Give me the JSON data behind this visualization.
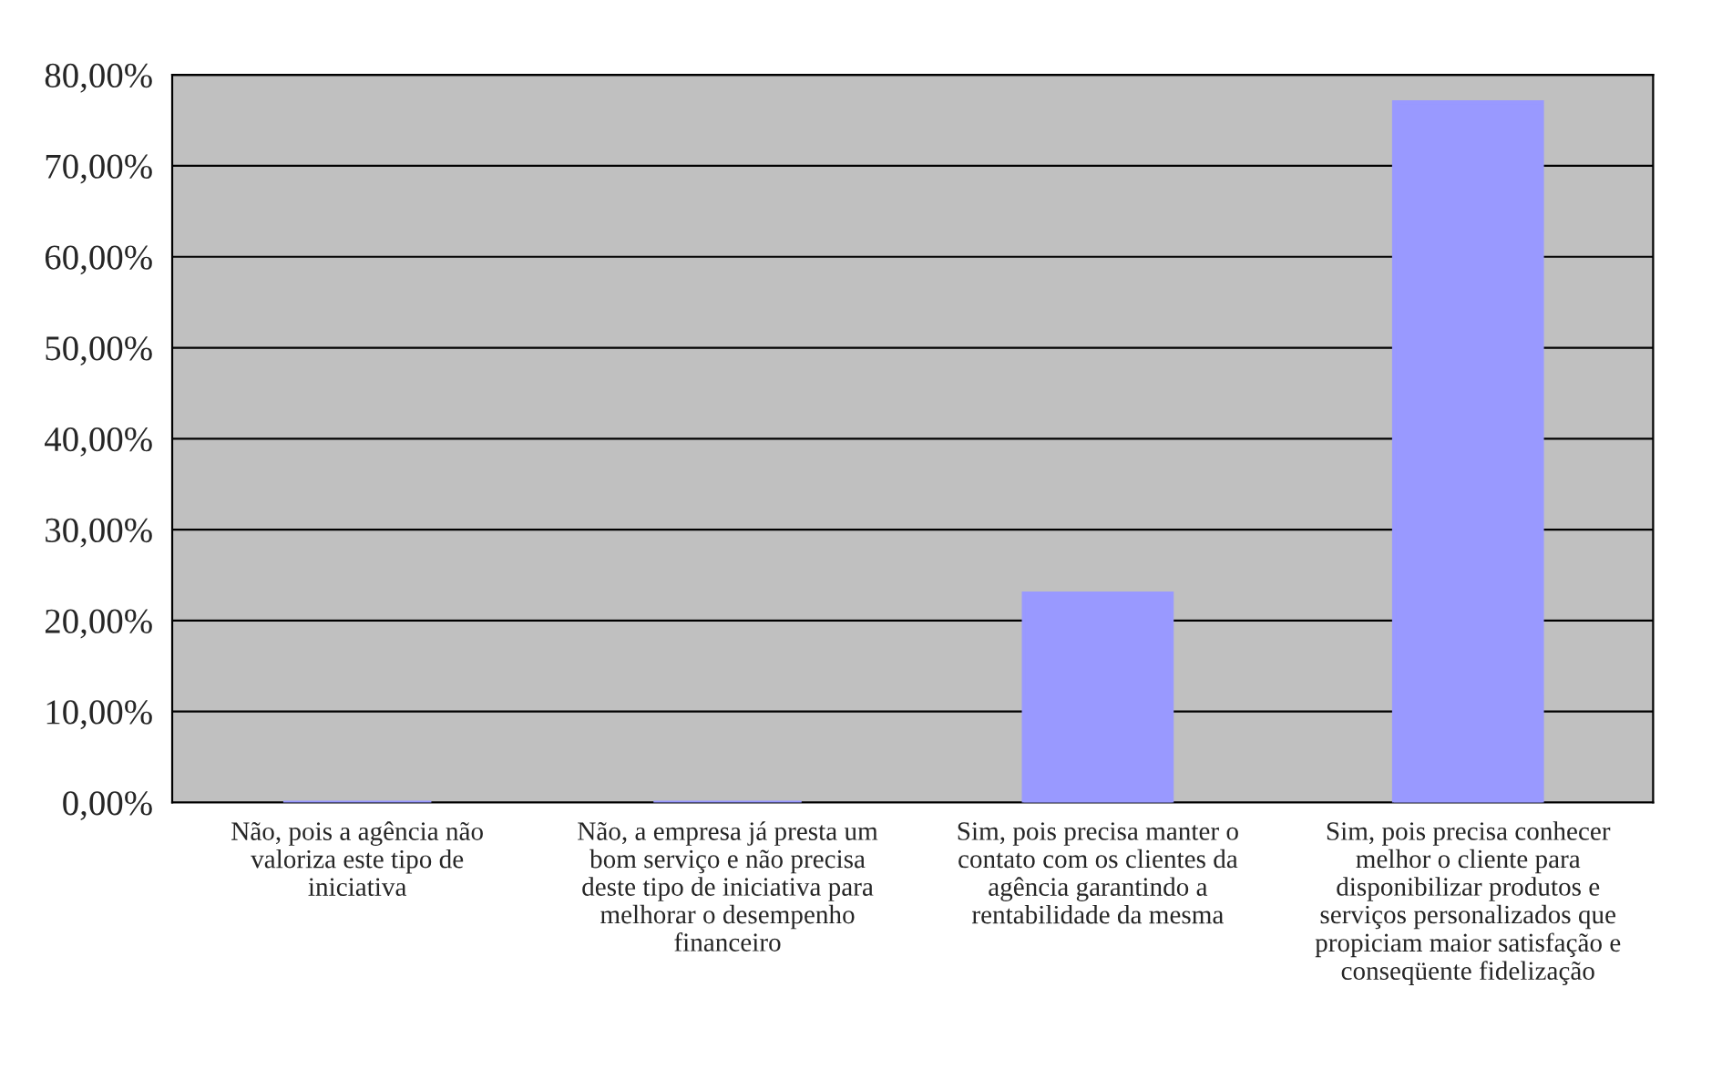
{
  "chart_data": {
    "type": "bar",
    "categories": [
      "Não, pois a agência não\nvaloriza este tipo de\niniciativa",
      "Não, a empresa já presta um\nbom serviço e não precisa\ndeste tipo de iniciativa para\nmelhorar o desempenho\nfinanceiro",
      "Sim, pois precisa manter o\ncontato com os clientes da\nagência garantindo a\nrentabilidade da mesma",
      "Sim, pois precisa conhecer\nmelhor o cliente para\ndisponibilizar produtos e\nserviços personalizados que\npropiciam maior satisfação e\nconseqüente fidelização"
    ],
    "values": [
      0,
      0,
      23,
      77
    ],
    "color": "#9999ff",
    "ylim": [
      0,
      80
    ],
    "yticks": [
      {
        "value": 0,
        "label": "0,00%"
      },
      {
        "value": 10,
        "label": "10,00%"
      },
      {
        "value": 20,
        "label": "20,00%"
      },
      {
        "value": 30,
        "label": "30,00%"
      },
      {
        "value": 40,
        "label": "40,00%"
      },
      {
        "value": 50,
        "label": "50,00%"
      },
      {
        "value": 60,
        "label": "60,00%"
      },
      {
        "value": 70,
        "label": "70,00%"
      },
      {
        "value": 80,
        "label": "80,00%"
      }
    ],
    "grid": "y"
  }
}
